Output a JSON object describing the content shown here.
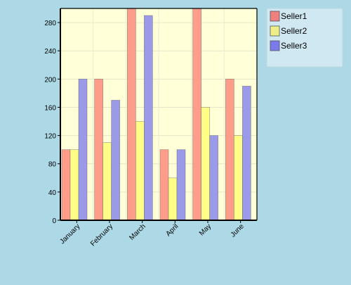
{
  "chart_data": {
    "type": "bar",
    "categories": [
      "January",
      "February",
      "March",
      "April",
      "May",
      "June"
    ],
    "series": [
      {
        "name": "Seller1",
        "values": [
          100,
          200,
          300,
          100,
          300,
          200
        ],
        "color": "#ff9c8a",
        "swatch": "#f08080"
      },
      {
        "name": "Seller2",
        "values": [
          100,
          110,
          140,
          60,
          160,
          120
        ],
        "color": "#ffff88",
        "swatch": "#eeee88"
      },
      {
        "name": "Seller3",
        "values": [
          200,
          170,
          290,
          100,
          120,
          190
        ],
        "color": "#9a9ae8",
        "swatch": "#7a7ae8"
      }
    ],
    "yticks": [
      0,
      40,
      80,
      120,
      160,
      200,
      240,
      280
    ],
    "ylim": [
      0,
      300
    ],
    "grid": true,
    "legend": "top-right"
  },
  "colors": {
    "page_bg": "#add8e6",
    "plot_bg": "#ffffd8",
    "legend_bg": "#cfe8f2"
  }
}
